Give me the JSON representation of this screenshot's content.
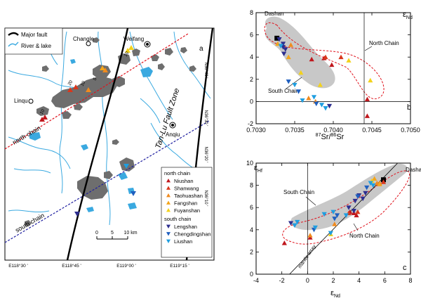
{
  "colors": {
    "niushan": "#c0171d",
    "shanwang": "#d9371c",
    "taohuashan": "#f08a1e",
    "fangshan": "#f3a51b",
    "fuyanshan": "#f3d21b",
    "lengshan": "#2d2e8f",
    "chengdingshan": "#1f5fbf",
    "liushan": "#1f9ee0",
    "dashan": "#000000",
    "field": "#c8c8c8",
    "north_ellipse": "#e0131d",
    "pluton": "#6e6e6e",
    "water": "#3aa9e0",
    "north_line": "#e0131d",
    "south_line": "#1f1fa0"
  },
  "map": {
    "panel_label": "a",
    "towns": [
      "Changle",
      "Weifang",
      "Linqu",
      "Anqiu"
    ],
    "fault_zone_label": "Tan-Lu Fault Zone",
    "north_chain_label": "north chain",
    "south_chain_label": "south chain",
    "lon_ticks": [
      "E118°30 '",
      "E118°45 '",
      "E119°00 '",
      "E119°15 '"
    ],
    "lat_ticks": [
      "N36°40 '",
      "N36°30 '",
      "N36°20 '",
      "N36°10 '"
    ],
    "sample_numbers": [
      "10",
      "5",
      "20",
      "10",
      "10"
    ],
    "scale_bar": {
      "ticks": [
        "0",
        "5",
        "10 km"
      ]
    },
    "legend_top": [
      {
        "label": "Major fault",
        "icon": "thick-black-line"
      },
      {
        "label": "River & lake",
        "icon": "blue-river"
      }
    ],
    "legend_bottom": {
      "north_title": "north chain",
      "north_items": [
        {
          "label": "Niushan",
          "color": "#c0171d"
        },
        {
          "label": "Shanwang",
          "color": "#d9371c"
        },
        {
          "label": "Taohuashan",
          "color": "#f08a1e"
        },
        {
          "label": "Fangshan",
          "color": "#f3a51b"
        },
        {
          "label": "Fuyanshan",
          "color": "#f3d21b"
        }
      ],
      "south_title": "south chain",
      "south_items": [
        {
          "label": "Lengshan",
          "color": "#2d2e8f"
        },
        {
          "label": "Chengdingshan",
          "color": "#1f5fbf"
        },
        {
          "label": "Liushan",
          "color": "#1f9ee0"
        }
      ]
    }
  },
  "chart_data": [
    {
      "panel": "b",
      "type": "scatter",
      "xlabel": "87Sr/86Sr",
      "ylabel": "εNd",
      "xlim": [
        0.703,
        0.705
      ],
      "ylim": [
        -2,
        8
      ],
      "xticks": [
        "0.7030",
        "0.7035",
        "0.7040",
        "0.7045",
        "0.7050"
      ],
      "yticks": [
        "-2",
        "0",
        "2",
        "4",
        "6",
        "8"
      ],
      "annotations": [
        "Dashan",
        "North Chain",
        "South Chain"
      ],
      "reference_lines": {
        "x": 0.7044,
        "y": 0
      },
      "series": [
        {
          "group": "Dashan",
          "marker": "square",
          "points": [
            [
              0.70327,
              5.7
            ]
          ]
        },
        {
          "group": "Niushan",
          "marker": "triangle-up",
          "points": [
            [
              0.70444,
              -1.3
            ],
            [
              0.70444,
              0.2
            ],
            [
              0.70388,
              3.9
            ],
            [
              0.70372,
              3.8
            ],
            [
              0.70398,
              3.3
            ]
          ]
        },
        {
          "group": "Shanwang",
          "marker": "triangle-up",
          "points": [
            [
              0.7039,
              4.0
            ],
            [
              0.7041,
              4.0
            ]
          ]
        },
        {
          "group": "Taohuashan",
          "marker": "triangle-up",
          "points": [
            [
              0.70345,
              5.1
            ],
            [
              0.70368,
              0.3
            ],
            [
              0.70377,
              0.0
            ]
          ]
        },
        {
          "group": "Fangshan",
          "marker": "triangle-up",
          "points": [
            [
              0.70328,
              5.2
            ],
            [
              0.70342,
              4.0
            ]
          ]
        },
        {
          "group": "Fuyanshan",
          "marker": "triangle-up",
          "points": [
            [
              0.7042,
              3.7
            ],
            [
              0.70448,
              1.9
            ],
            [
              0.70383,
              1.5
            ],
            [
              0.70358,
              2.6
            ]
          ]
        },
        {
          "group": "Lengshan",
          "marker": "triangle-down",
          "points": [
            [
              0.7033,
              5.6
            ],
            [
              0.70335,
              5.2
            ],
            [
              0.70335,
              4.9
            ],
            [
              0.70338,
              4.7
            ],
            [
              0.70336,
              4.3
            ],
            [
              0.70395,
              -0.4
            ]
          ]
        },
        {
          "group": "Chengdingshan",
          "marker": "triangle-down",
          "points": [
            [
              0.70342,
              1.8
            ],
            [
              0.70355,
              0.9
            ],
            [
              0.70378,
              -0.2
            ]
          ]
        },
        {
          "group": "Liushan",
          "marker": "triangle-down",
          "points": [
            [
              0.70332,
              5.0
            ],
            [
              0.7035,
              1.5
            ],
            [
              0.7036,
              0.1
            ],
            [
              0.70375,
              0.4
            ],
            [
              0.70385,
              -0.3
            ],
            [
              0.7039,
              -0.6
            ]
          ]
        }
      ]
    },
    {
      "panel": "c",
      "type": "scatter",
      "xlabel": "εNd",
      "ylabel": "εHf",
      "xlim": [
        -4,
        8
      ],
      "ylim": [
        0,
        10
      ],
      "xticks": [
        "-4",
        "-2",
        "0",
        "2",
        "4",
        "6",
        "8"
      ],
      "yticks": [
        "0",
        "2",
        "4",
        "6",
        "8",
        "10"
      ],
      "annotations": [
        "Dashan",
        "South Chain",
        "North Chain",
        "mantle array"
      ],
      "reference_lines": {
        "x": 0,
        "mantle_array": [
          [
            -1.4,
            0
          ],
          [
            7,
            10
          ]
        ]
      },
      "series": [
        {
          "group": "Dashan",
          "marker": "square",
          "points": [
            [
              5.9,
              8.5
            ]
          ]
        },
        {
          "group": "Niushan",
          "marker": "triangle-up",
          "points": [
            [
              -1.8,
              2.8
            ],
            [
              0.2,
              3.3
            ],
            [
              3.6,
              5.5
            ],
            [
              3.8,
              5.3
            ],
            [
              3.3,
              5.6
            ]
          ]
        },
        {
          "group": "Shanwang",
          "marker": "triangle-up",
          "points": [
            [
              3.2,
              5.5
            ],
            [
              3.9,
              5.6
            ],
            [
              5.9,
              8.3
            ]
          ]
        },
        {
          "group": "Taohuashan",
          "marker": "triangle-up",
          "points": [
            [
              5.4,
              8.2
            ],
            [
              5.6,
              8.2
            ],
            [
              2.1,
              4.5
            ],
            [
              0.2,
              3.5
            ]
          ]
        },
        {
          "group": "Fangshan",
          "marker": "triangle-up",
          "points": [
            [
              5.2,
              8.6
            ],
            [
              5.6,
              8.1
            ]
          ]
        },
        {
          "group": "Fuyanshan",
          "marker": "triangle-up",
          "points": [
            [
              1.8,
              3.6
            ],
            [
              5.0,
              8.4
            ]
          ]
        },
        {
          "group": "Lengshan",
          "marker": "triangle-down",
          "points": [
            [
              4.0,
              7.1
            ],
            [
              4.5,
              7.3
            ],
            [
              3.7,
              6.6
            ],
            [
              4.3,
              6.8
            ],
            [
              3.2,
              6.0
            ],
            [
              3.6,
              5.7
            ],
            [
              -1.3,
              4.6
            ]
          ]
        },
        {
          "group": "Chengdingshan",
          "marker": "triangle-down",
          "points": [
            [
              3.9,
              7.0
            ],
            [
              4.6,
              7.8
            ],
            [
              2.3,
              5.3
            ],
            [
              2.1,
              5.0
            ],
            [
              0.5,
              4.0
            ]
          ]
        },
        {
          "group": "Liushan",
          "marker": "triangle-down",
          "points": [
            [
              -0.8,
              4.7
            ],
            [
              -1.0,
              4.4
            ],
            [
              1.3,
              5.4
            ],
            [
              2.0,
              5.6
            ],
            [
              3.0,
              5.3
            ],
            [
              5.1,
              8.0
            ],
            [
              4.9,
              8.2
            ],
            [
              1.8,
              3.7
            ],
            [
              0.6,
              4.2
            ]
          ]
        }
      ]
    }
  ]
}
